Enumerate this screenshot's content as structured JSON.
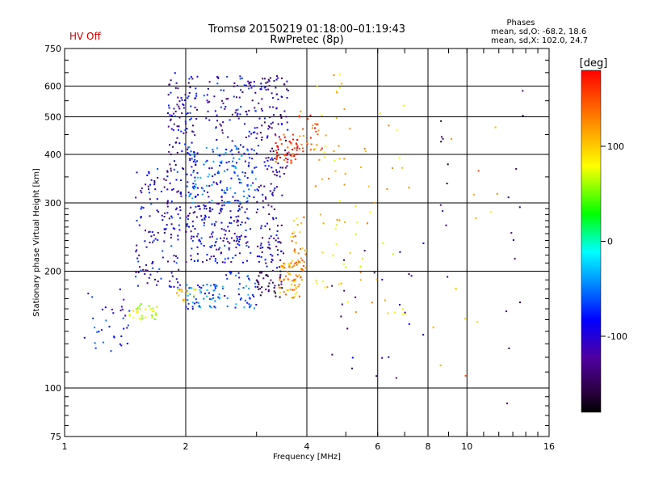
{
  "status_label": "HV Off",
  "phases_box": {
    "heading": "Phases",
    "line1": "mean, sd,O: -68.2, 18.6",
    "line2": "mean, sd,X: 102.0, 24.7"
  },
  "colorbar": {
    "unit_label": "[deg]",
    "min": -180,
    "max": 180,
    "tick_labels": [
      "100",
      "0",
      "-100"
    ],
    "tick_values": [
      100,
      0,
      -100
    ]
  },
  "colors": {
    "status": "#cc0000",
    "grid": "#000000"
  },
  "chart_data": {
    "type": "scatter",
    "title": "Tromsø 20150219 01:18:00–01:19:43",
    "subtitle": "RwPretec (8p)",
    "xlabel": "Frequency [MHz]",
    "ylabel": "Stationary phase Virtual Height [km]",
    "xscale": "log",
    "yscale": "log",
    "xlim": [
      1,
      16
    ],
    "ylim": [
      75,
      750
    ],
    "x_ticks": [
      1,
      2,
      4,
      6,
      8,
      10,
      16
    ],
    "x_tick_labels": [
      "1",
      "2",
      "4",
      "6",
      "8",
      "10",
      "16"
    ],
    "y_ticks": [
      75,
      100,
      200,
      300,
      400,
      500,
      600,
      750
    ],
    "y_tick_labels": [
      "75",
      "100",
      "200",
      "300",
      "400",
      "500",
      "600",
      "750"
    ],
    "grid": true,
    "color_variable": "phase [deg]",
    "clusters": [
      {
        "x": [
          1.12,
          1.45
        ],
        "y": [
          120,
          180
        ],
        "phase": -95,
        "count": 35
      },
      {
        "x": [
          1.45,
          1.75
        ],
        "y": [
          150,
          165
        ],
        "phase": 60,
        "count": 30
      },
      {
        "x": [
          1.5,
          1.95
        ],
        "y": [
          180,
          370
        ],
        "phase": -110,
        "count": 150
      },
      {
        "x": [
          1.8,
          2.15
        ],
        "y": [
          360,
          650
        ],
        "phase": -115,
        "count": 110
      },
      {
        "x": [
          2.0,
          2.9
        ],
        "y": [
          210,
          300
        ],
        "phase": -108,
        "count": 180
      },
      {
        "x": [
          2.0,
          3.0
        ],
        "y": [
          300,
          420
        ],
        "phase": -80,
        "count": 170
      },
      {
        "x": [
          2.0,
          2.5
        ],
        "y": [
          160,
          185
        ],
        "phase": -80,
        "count": 60
      },
      {
        "x": [
          2.5,
          3.0
        ],
        "y": [
          160,
          200
        ],
        "phase": -80,
        "count": 40
      },
      {
        "x": [
          1.9,
          2.15
        ],
        "y": [
          165,
          180
        ],
        "phase": 100,
        "count": 15
      },
      {
        "x": [
          2.2,
          3.0
        ],
        "y": [
          420,
          640
        ],
        "phase": -110,
        "count": 90
      },
      {
        "x": [
          3.0,
          3.6
        ],
        "y": [
          350,
          640
        ],
        "phase": -120,
        "count": 110
      },
      {
        "x": [
          3.0,
          3.5
        ],
        "y": [
          200,
          340
        ],
        "phase": -120,
        "count": 80
      },
      {
        "x": [
          3.0,
          3.5
        ],
        "y": [
          170,
          200
        ],
        "phase": -155,
        "count": 40
      },
      {
        "x": [
          3.3,
          3.8
        ],
        "y": [
          380,
          450
        ],
        "phase": 165,
        "count": 50
      },
      {
        "x": [
          3.4,
          3.9
        ],
        "y": [
          170,
          210
        ],
        "phase": 120,
        "count": 60
      },
      {
        "x": [
          3.6,
          4.0
        ],
        "y": [
          200,
          280
        ],
        "phase": 120,
        "count": 40
      },
      {
        "x": [
          3.8,
          4.4
        ],
        "y": [
          400,
          520
        ],
        "phase": 150,
        "count": 30
      },
      {
        "x": [
          4.2,
          5.0
        ],
        "y": [
          180,
          650
        ],
        "phase": 100,
        "count": 45
      },
      {
        "x": [
          4.8,
          7.2
        ],
        "y": [
          150,
          600
        ],
        "phase": 100,
        "count": 40
      },
      {
        "x": [
          4.6,
          7.8
        ],
        "y": [
          100,
          250
        ],
        "phase": -130,
        "count": 25
      },
      {
        "x": [
          8.6,
          9.0
        ],
        "y": [
          180,
          500
        ],
        "phase": -140,
        "count": 10
      },
      {
        "x": [
          8.0,
          12.0
        ],
        "y": [
          100,
          480
        ],
        "phase": 120,
        "count": 14
      },
      {
        "x": [
          12.5,
          14.5
        ],
        "y": [
          88,
          650
        ],
        "phase": -130,
        "count": 12
      }
    ]
  }
}
